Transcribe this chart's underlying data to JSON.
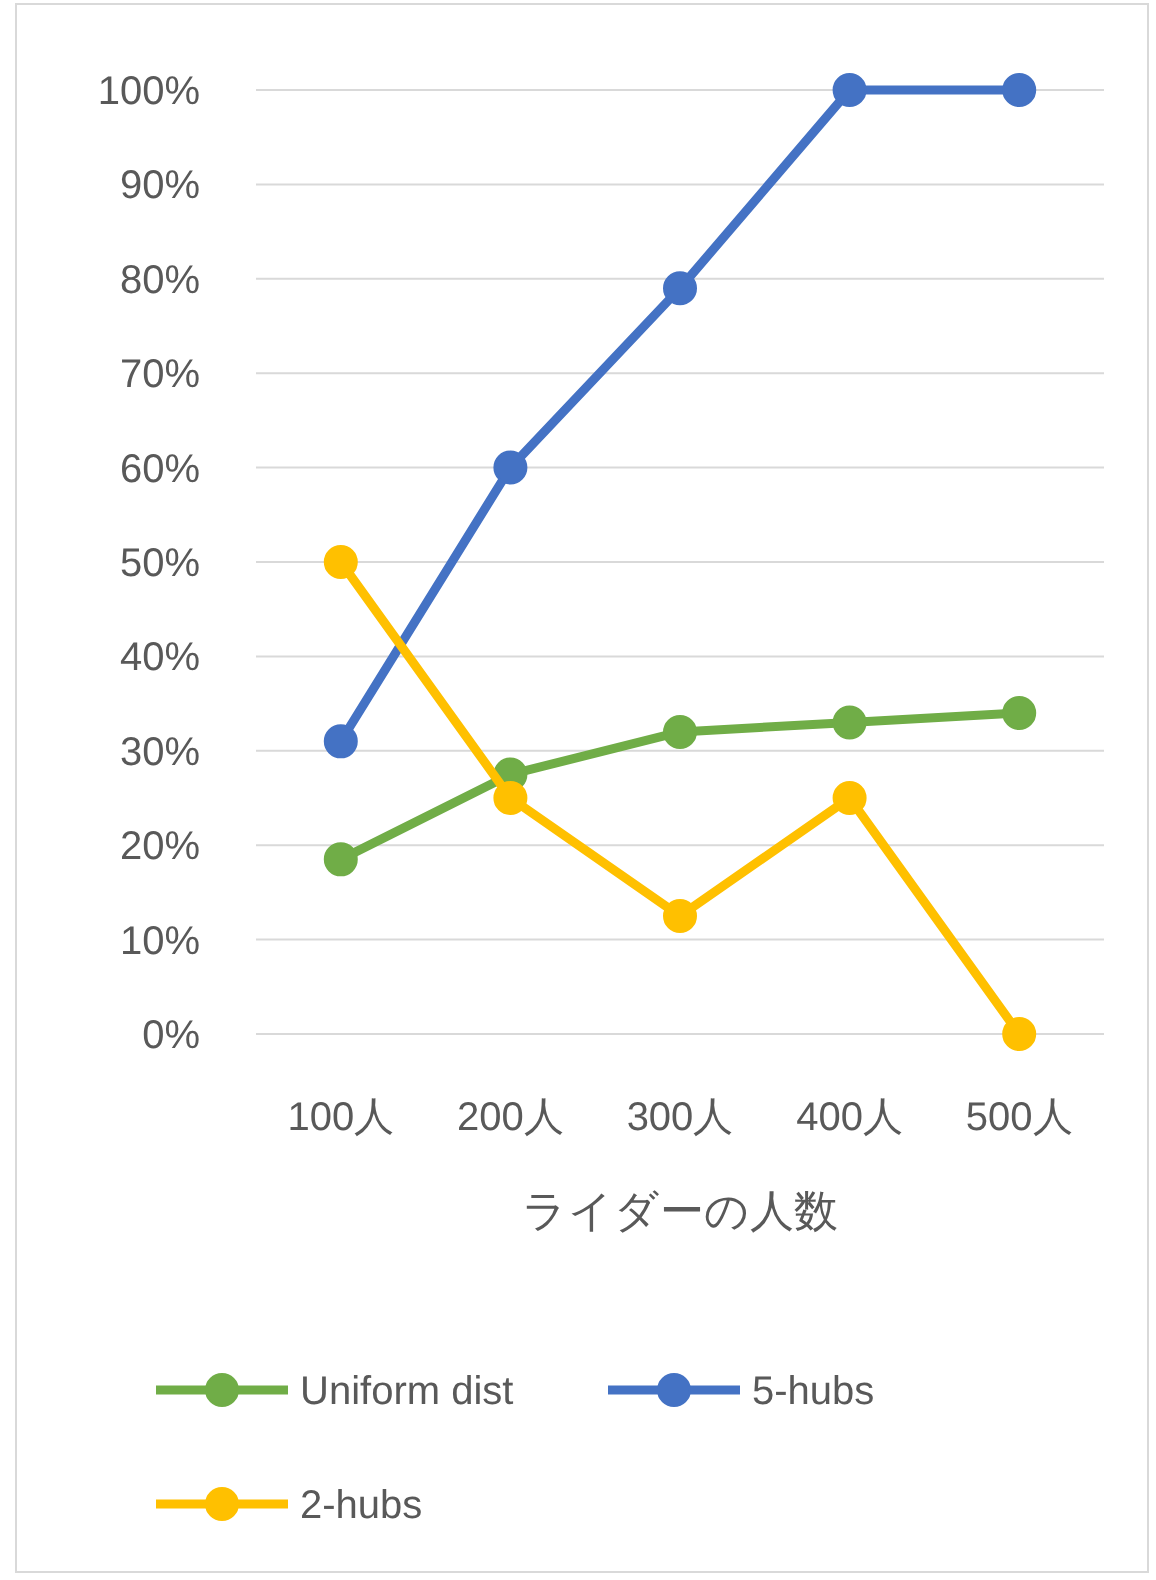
{
  "chart_data": {
    "type": "line",
    "xlabel": "ライダーの人数",
    "categories": [
      "100人",
      "200人",
      "300人",
      "400人",
      "500人"
    ],
    "series": [
      {
        "name": "Uniform dist",
        "color": "#70ad47",
        "values": [
          18.5,
          27.5,
          32,
          33,
          34
        ]
      },
      {
        "name": "5-hubs",
        "color": "#4472c4",
        "values": [
          31,
          60,
          79,
          100,
          100
        ]
      },
      {
        "name": "2-hubs",
        "color": "#ffc000",
        "values": [
          50,
          25,
          12.5,
          25,
          0
        ]
      }
    ],
    "ylim": [
      0,
      100
    ],
    "yticks": [
      {
        "value": 0,
        "label": "0%"
      },
      {
        "value": 10,
        "label": "10%"
      },
      {
        "value": 20,
        "label": "20%"
      },
      {
        "value": 30,
        "label": "30%"
      },
      {
        "value": 40,
        "label": "40%"
      },
      {
        "value": 50,
        "label": "50%"
      },
      {
        "value": 60,
        "label": "60%"
      },
      {
        "value": 70,
        "label": "70%"
      },
      {
        "value": 80,
        "label": "80%"
      },
      {
        "value": 90,
        "label": "90%"
      },
      {
        "value": 100,
        "label": "100%"
      }
    ],
    "grid": "y",
    "legend": "bottom",
    "marker": "circle",
    "line_style": "solid"
  }
}
